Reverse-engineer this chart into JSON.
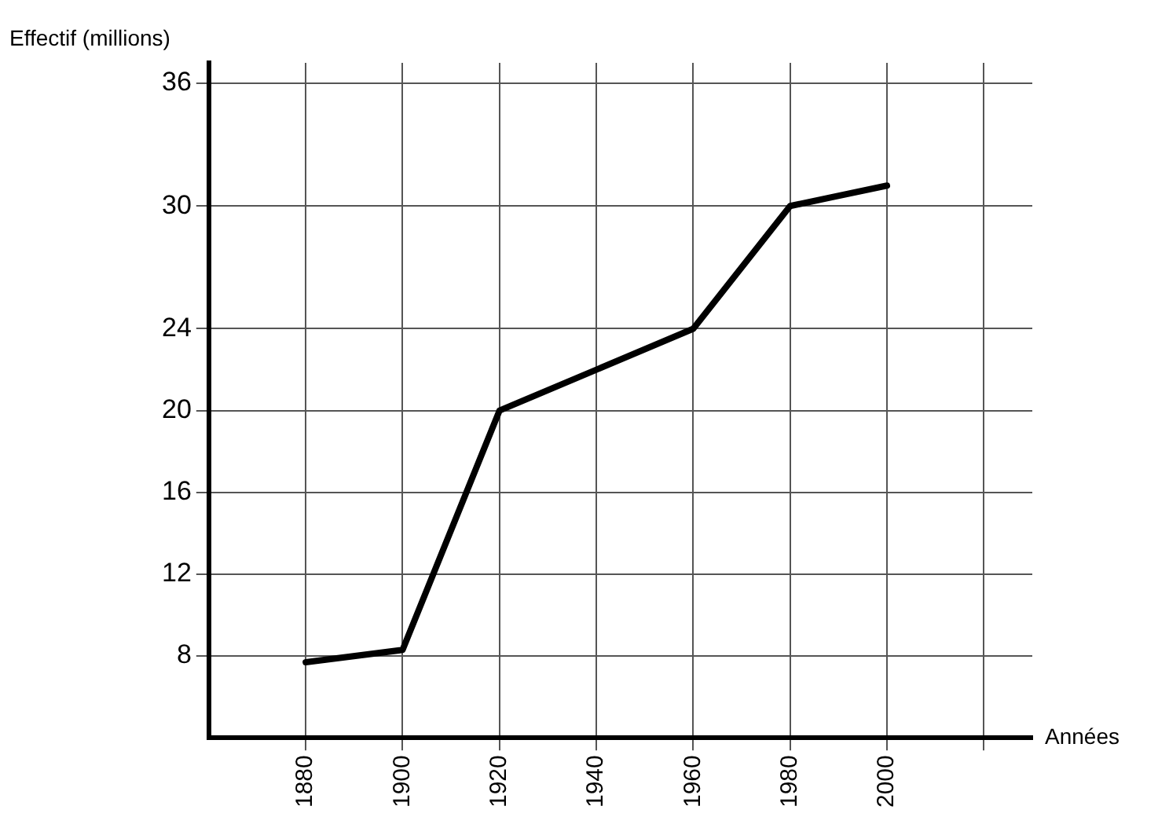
{
  "chart_data": {
    "type": "line",
    "xlabel": "Années",
    "ylabel": "Effectif (millions)",
    "x": [
      1880,
      1900,
      1920,
      1940,
      1960,
      1980,
      2000
    ],
    "series": [
      {
        "color": "#000000",
        "values": [
          7.7,
          8.3,
          20,
          22,
          24,
          30,
          31
        ]
      }
    ],
    "xlim": [
      1860,
      2030
    ],
    "xticks": [
      1880,
      1900,
      1920,
      1940,
      1960,
      1980,
      2000,
      {
        "value": 2020,
        "label": null
      }
    ],
    "ylim": [
      4,
      37
    ],
    "yticks": [
      8,
      12,
      16,
      20,
      24,
      30,
      36
    ],
    "grid": true,
    "legend": false,
    "marker": "none",
    "line_style": "solid"
  }
}
